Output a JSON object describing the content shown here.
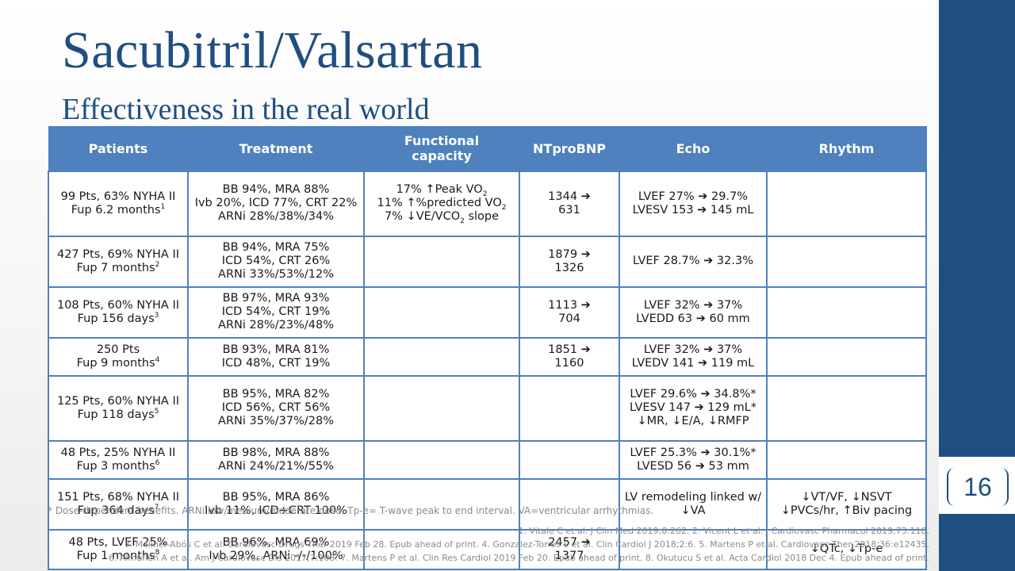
{
  "slide": {
    "title": "Sacubitril/Valsartan",
    "subtitle": "Effectiveness in the real world",
    "slide_number": "16",
    "footnote": "* Dose-dependent benefits. ARNi low/medium/moderate dose. Tp-e= T-wave peak to end interval. VA=ventricular arrhythmias.",
    "references": [
      "1. Vitale C et al. J Clin Med 2019;8:262. 2. Vicent L et al. J Cardiovasc Pharmacol 2019;73:118.",
      "3. Moliner-Abós C et al. Cardiovasc Drugs Ther 2019 Feb 28. Epub ahead of print. 4. Gonzalez-Torres L et al. Clin Cardiol J 2018;2:6. 5. Martens P et al. Cardiovasc Ther 2018;36:e12435.",
      "6. Almufleh A et al. Am J Cardiovasc Dis 2017;7:108. 7. Martens P et al. Clin Res Cardiol 2019 Feb 20. Epub ahead of print. 8. Okutucu S et al. Acta Cardiol 2018 Dec 4. Epub ahead of print."
    ]
  },
  "table": {
    "headers": [
      "Patients",
      "Treatment",
      "Functional capacity",
      "NTproBNP",
      "Echo",
      "Rhythm"
    ],
    "rows": [
      {
        "patients": [
          "99 Pts, 63% NYHA II",
          "Fup 6.2 months"
        ],
        "ref": "1",
        "treatment": [
          "BB 94%, MRA 88%",
          "Ivb 20%, ICD 77%, CRT 22%",
          "ARNi 28%/38%/34%"
        ],
        "functional": [
          "17% ↑Peak VO2",
          "11% ↑%predicted VO2",
          "7% ↓VE/VCO2 slope"
        ],
        "ntprobnp": "1344 ➔ 631",
        "echo": [
          "LVEF 27% ➔ 29.7%",
          "LVESV 153 ➔ 145 mL"
        ],
        "rhythm": []
      },
      {
        "patients": [
          "427 Pts, 69% NYHA II",
          "Fup 7 months"
        ],
        "ref": "2",
        "treatment": [
          "BB 94%, MRA 75%",
          "ICD 54%, CRT 26%",
          "ARNi 33%/53%/12%"
        ],
        "functional": [],
        "ntprobnp": "1879 ➔ 1326",
        "echo": [
          "LVEF 28.7% ➔ 32.3%"
        ],
        "rhythm": []
      },
      {
        "patients": [
          "108 Pts, 60% NYHA II",
          "Fup 156 days"
        ],
        "ref": "3",
        "treatment": [
          "BB 97%, MRA 93%",
          "ICD 54%, CRT 19%",
          "ARNi 28%/23%/48%"
        ],
        "functional": [],
        "ntprobnp": "1113 ➔ 704",
        "echo": [
          "LVEF 32% ➔ 37%",
          "LVEDD 63 ➔ 60 mm"
        ],
        "rhythm": []
      },
      {
        "patients": [
          "250 Pts",
          "Fup 9 months"
        ],
        "ref": "4",
        "treatment": [
          "BB 93%, MRA 81%",
          "ICD 48%, CRT 19%"
        ],
        "functional": [],
        "ntprobnp": "1851 ➔ 1160",
        "echo": [
          "LVEF 32% ➔ 37%",
          "LVEDV 141 ➔ 119 mL"
        ],
        "rhythm": []
      },
      {
        "patients": [
          "125 Pts, 60% NYHA II",
          "Fup 118 days"
        ],
        "ref": "5",
        "treatment": [
          "BB 95%, MRA 82%",
          "ICD 56%, CRT 56%",
          "ARNi 35%/37%/28%"
        ],
        "functional": [],
        "ntprobnp": "",
        "echo": [
          "LVEF 29.6% ➔ 34.8%*",
          "LVESV 147 ➔ 129 mL*",
          "↓MR, ↓E/A, ↓RMFP"
        ],
        "rhythm": []
      },
      {
        "patients": [
          "48 Pts, 25% NYHA II",
          "Fup 3 months"
        ],
        "ref": "6",
        "treatment": [
          "BB 98%, MRA 88%",
          "ARNi 24%/21%/55%"
        ],
        "functional": [],
        "ntprobnp": "",
        "echo": [
          "LVEF 25.3% ➔ 30.1%*",
          "LVESD 56 ➔ 53 mm"
        ],
        "rhythm": []
      },
      {
        "patients": [
          "151 Pts, 68% NYHA II",
          "Fup 364 days"
        ],
        "ref": "7",
        "treatment": [
          "BB 95%, MRA 86%",
          "Ivb 11%, ICD+CRT 100%"
        ],
        "functional": [],
        "ntprobnp": "",
        "echo": [
          "LV remodeling linked w/ ↓VA"
        ],
        "rhythm": [
          "↓VT/VF, ↓NSVT",
          "↓PVCs/hr, ↑Biv pacing"
        ]
      },
      {
        "patients": [
          "48 Pts, LVEF 25%",
          "Fup 1 months"
        ],
        "ref": "8",
        "treatment": [
          "BB 96%, MRA 69%",
          "Ivb 29%, ARNi -/-/100%"
        ],
        "functional": [],
        "ntprobnp": "2457 ➔ 1377",
        "echo": [],
        "rhythm": [
          "↓QTc, ↓Tp-e"
        ]
      }
    ]
  }
}
